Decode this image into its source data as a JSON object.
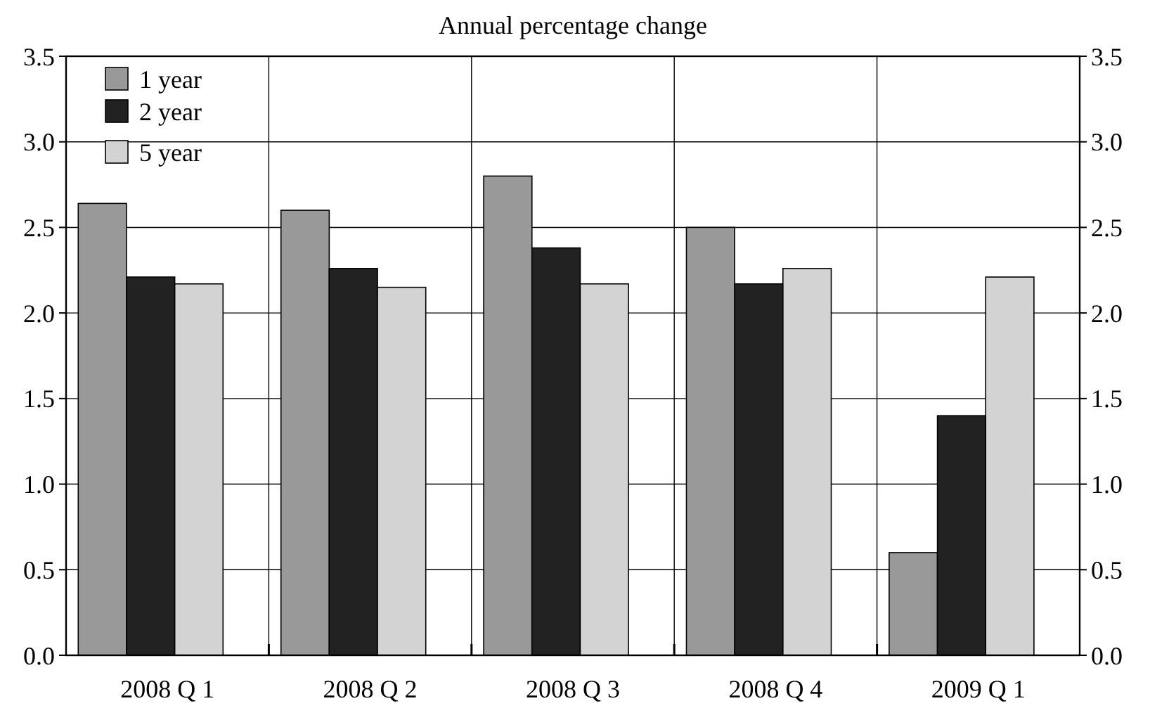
{
  "chart_data": {
    "type": "bar",
    "title": "Annual percentage change",
    "categories": [
      "2008 Q 1",
      "2008 Q 2",
      "2008 Q 3",
      "2008 Q 4",
      "2009 Q 1"
    ],
    "series": [
      {
        "name": "1 year",
        "color": "#999999",
        "values": [
          2.64,
          2.6,
          2.8,
          2.5,
          0.6
        ]
      },
      {
        "name": "2 year",
        "color": "#222222",
        "values": [
          2.21,
          2.26,
          2.38,
          2.17,
          1.4
        ]
      },
      {
        "name": "5 year",
        "color": "#d3d3d3",
        "values": [
          2.17,
          2.15,
          2.17,
          2.26,
          2.21
        ]
      }
    ],
    "ylim": [
      0,
      3.5
    ],
    "yticks": [
      {
        "value": 0,
        "label": "0.0"
      },
      {
        "value": 0.5,
        "label": "0.5"
      },
      {
        "value": 1,
        "label": "1.0"
      },
      {
        "value": 1.5,
        "label": "1.5"
      },
      {
        "value": 2,
        "label": "2.0"
      },
      {
        "value": 2.5,
        "label": "2.5"
      },
      {
        "value": 3,
        "label": "3.0"
      },
      {
        "value": 3.5,
        "label": "3.5"
      }
    ],
    "y2lim": [
      0,
      3.5
    ],
    "y2ticks": [
      {
        "value": 0,
        "label": "0.0"
      },
      {
        "value": 0.5,
        "label": "0.5"
      },
      {
        "value": 1,
        "label": "1.0"
      },
      {
        "value": 1.5,
        "label": "1.5"
      },
      {
        "value": 2,
        "label": "2.0"
      },
      {
        "value": 2.5,
        "label": "2.5"
      },
      {
        "value": 3,
        "label": "3.0"
      },
      {
        "value": 3.5,
        "label": "3.5"
      }
    ],
    "grid": true,
    "legend": "top left"
  }
}
